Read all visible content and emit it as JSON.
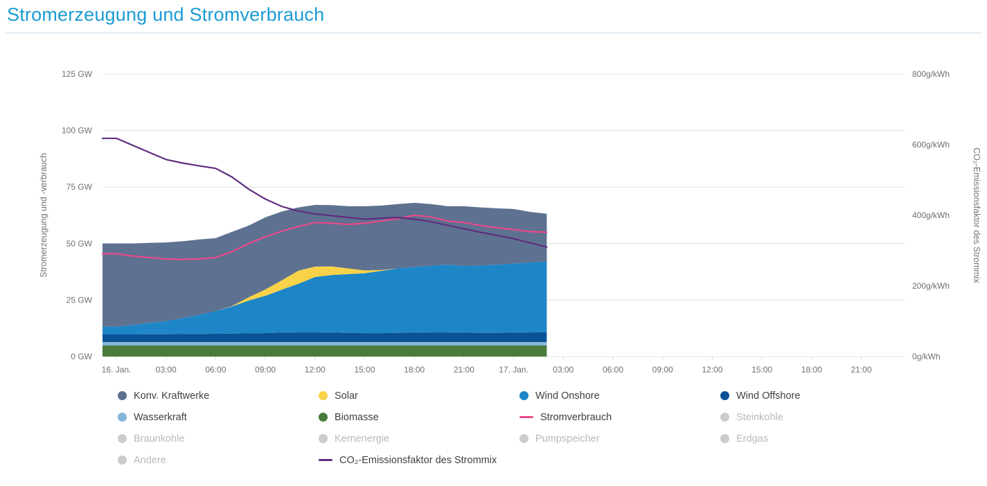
{
  "title": "Stromerzeugung und Stromverbrauch",
  "colors": {
    "title": "#1b9bd3",
    "grid": "#e3e3e3",
    "tick_label": "#6f6f6f",
    "axis_label": "#757575",
    "legend_text": "#3f3f3f",
    "legend_disabled_text": "#b9b9b9",
    "legend_disabled_dot": "#cccccc"
  },
  "chart_data": {
    "type": "area",
    "title": "Stromerzeugung und Stromverbrauch",
    "x_ticks": [
      "16. Jan.",
      "03:00",
      "06:00",
      "09:00",
      "12:00",
      "15:00",
      "18:00",
      "21:00",
      "17. Jan.",
      "03:00",
      "06:00",
      "09:00",
      "12:00",
      "15:00",
      "18:00",
      "21:00"
    ],
    "x_tick_hours": [
      0,
      3,
      6,
      9,
      12,
      15,
      18,
      21,
      24,
      27,
      30,
      33,
      36,
      39,
      42,
      45
    ],
    "hours": [
      0,
      1,
      2,
      3,
      4,
      5,
      6,
      7,
      8,
      9,
      10,
      11,
      12,
      13,
      14,
      15,
      16,
      17,
      18,
      19,
      20,
      21,
      22,
      23,
      24,
      25,
      26
    ],
    "left_axis": {
      "label": "Stromerzeugung und -verbrauch",
      "unit": "GW",
      "max": 125,
      "ticks": [
        {
          "value": 0,
          "label": "0 GW"
        },
        {
          "value": 25,
          "label": "25 GW"
        },
        {
          "value": 50,
          "label": "50 GW"
        },
        {
          "value": 75,
          "label": "75 GW"
        },
        {
          "value": 100,
          "label": "100 GW"
        },
        {
          "value": 125,
          "label": "125 GW"
        }
      ]
    },
    "right_axis": {
      "label": "CO₂-Emissionsfaktor des Strommix",
      "unit": "g/kWh",
      "max": 800,
      "ticks": [
        {
          "value": 0,
          "label": "0g/kWh"
        },
        {
          "value": 200,
          "label": "200g/kWh"
        },
        {
          "value": 400,
          "label": "400g/kWh"
        },
        {
          "value": 600,
          "label": "600g/kWh"
        },
        {
          "value": 800,
          "label": "800g/kWh"
        }
      ]
    },
    "stack_series": [
      {
        "name": "Biomasse",
        "color": "#4b7a3d",
        "values": [
          4.9,
          4.9,
          4.9,
          4.9,
          4.9,
          4.9,
          4.9,
          4.9,
          4.9,
          4.9,
          4.9,
          4.9,
          4.9,
          4.9,
          4.9,
          4.9,
          4.9,
          4.9,
          4.9,
          4.9,
          4.9,
          4.9,
          4.9,
          4.9,
          4.9,
          4.9,
          4.9
        ]
      },
      {
        "name": "Wasserkraft",
        "color": "#85b7da",
        "values": [
          1.5,
          1.5,
          1.5,
          1.5,
          1.5,
          1.5,
          1.5,
          1.5,
          1.5,
          1.5,
          1.5,
          1.5,
          1.5,
          1.5,
          1.5,
          1.5,
          1.5,
          1.5,
          1.5,
          1.5,
          1.5,
          1.5,
          1.5,
          1.5,
          1.5,
          1.5,
          1.5
        ]
      },
      {
        "name": "Wind Offshore",
        "color": "#0a5296",
        "values": [
          3.4,
          3.4,
          3.5,
          3.5,
          3.6,
          3.6,
          3.7,
          3.8,
          3.9,
          4.0,
          4.2,
          4.3,
          4.3,
          4.2,
          4.1,
          4.0,
          4.0,
          4.1,
          4.2,
          4.3,
          4.3,
          4.2,
          4.1,
          4.1,
          4.2,
          4.3,
          4.4
        ]
      },
      {
        "name": "Wind Onshore",
        "color": "#1e86c7",
        "values": [
          3.4,
          4.2,
          5.0,
          5.8,
          7.0,
          8.5,
          10.0,
          12.0,
          14.5,
          16.5,
          19.0,
          21.5,
          24.5,
          25.5,
          26.0,
          26.5,
          27.5,
          28.5,
          29.0,
          29.5,
          30.0,
          29.5,
          29.8,
          30.2,
          30.5,
          31.0,
          31.3
        ]
      },
      {
        "name": "Solar",
        "color": "#f8d248",
        "values": [
          0,
          0,
          0,
          0,
          0,
          0,
          0,
          0.2,
          1.5,
          2.8,
          4.2,
          5.8,
          4.6,
          3.8,
          2.5,
          1.2,
          0.4,
          0,
          0,
          0,
          0,
          0,
          0,
          0,
          0,
          0,
          0
        ]
      },
      {
        "name": "Konv. Kraftwerke",
        "color": "#5e7191",
        "values": [
          36.8,
          36.0,
          35.4,
          34.8,
          34.0,
          33.3,
          32.3,
          32.8,
          31.7,
          31.9,
          30.4,
          28.0,
          27.3,
          27.1,
          27.5,
          28.4,
          28.5,
          28.5,
          28.4,
          27.3,
          25.8,
          26.4,
          25.7,
          24.9,
          24.2,
          22.3,
          21.1
        ]
      }
    ],
    "line_series": [
      {
        "name": "Stromverbrauch",
        "color": "#e9498a",
        "axis": "left",
        "values": [
          45.5,
          44.5,
          43.8,
          43.2,
          43.0,
          43.2,
          43.8,
          46.5,
          50.0,
          53.0,
          55.5,
          57.5,
          59.3,
          59.0,
          58.5,
          59.0,
          60.0,
          61.0,
          62.5,
          61.8,
          60.0,
          59.3,
          58.0,
          57.0,
          56.2,
          55.3,
          55.0
        ]
      },
      {
        "name": "CO₂-Emissionsfaktor des Strommix",
        "color": "#5e2d7e",
        "axis": "right",
        "values": [
          618,
          598,
          578,
          558,
          548,
          540,
          533,
          508,
          474,
          446,
          425,
          412,
          404,
          399,
          394,
          389,
          392,
          394,
          389,
          382,
          372,
          362,
          352,
          343,
          334,
          322,
          310
        ]
      }
    ]
  },
  "legend": {
    "items": [
      {
        "label": "Konv. Kraftwerke",
        "color": "#5e7191",
        "marker": "dot",
        "enabled": true
      },
      {
        "label": "Solar",
        "color": "#f8d248",
        "marker": "dot",
        "enabled": true
      },
      {
        "label": "Wind Onshore",
        "color": "#1e86c7",
        "marker": "dot",
        "enabled": true
      },
      {
        "label": "Wind Offshore",
        "color": "#0a5296",
        "marker": "dot",
        "enabled": true
      },
      {
        "label": "Wasserkraft",
        "color": "#85b7da",
        "marker": "dot",
        "enabled": true
      },
      {
        "label": "Biomasse",
        "color": "#4b7a3d",
        "marker": "dot",
        "enabled": true
      },
      {
        "label": "Stromverbrauch",
        "color": "#e9498a",
        "marker": "line",
        "enabled": true
      },
      {
        "label": "Steinkohle",
        "color": "#cccccc",
        "marker": "dot",
        "enabled": false
      },
      {
        "label": "Braunkohle",
        "color": "#cccccc",
        "marker": "dot",
        "enabled": false
      },
      {
        "label": "Kernenergie",
        "color": "#cccccc",
        "marker": "dot",
        "enabled": false
      },
      {
        "label": "Pumpspeicher",
        "color": "#cccccc",
        "marker": "dot",
        "enabled": false
      },
      {
        "label": "Erdgas",
        "color": "#cccccc",
        "marker": "dot",
        "enabled": false
      },
      {
        "label": "Andere",
        "color": "#cccccc",
        "marker": "dot",
        "enabled": false
      },
      {
        "label": "CO₂-Emissionsfaktor des Strommix",
        "color": "#5e2d7e",
        "marker": "line",
        "enabled": true
      }
    ]
  }
}
